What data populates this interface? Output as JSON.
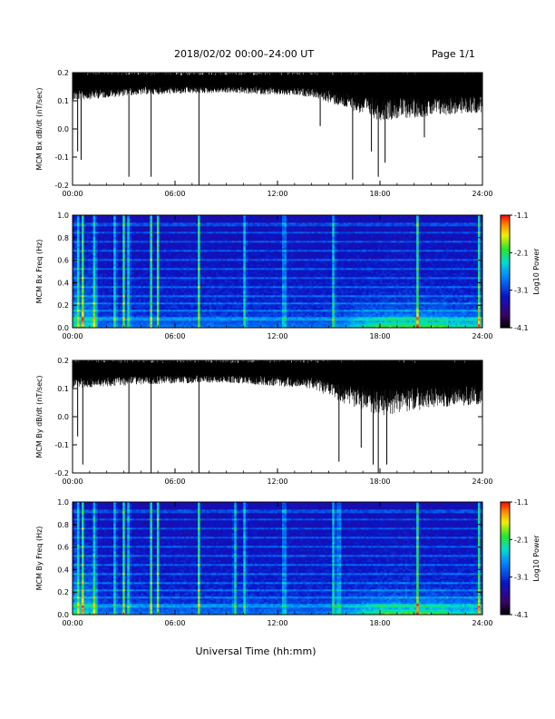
{
  "header": {
    "title": "2018/02/02  00:00–24:00 UT",
    "page": "Page 1/1"
  },
  "xaxis_title": "Universal Time (hh:mm)",
  "colors": {
    "trace": "#000000",
    "frame": "#000000",
    "background": "#ffffff"
  },
  "chart_data": [
    {
      "type": "line",
      "ylabel": "MCM Bx dB/dt (nT/sec)",
      "xlim": [
        0,
        24
      ],
      "ylim": [
        -0.2,
        0.2
      ],
      "xticks": [
        "00:00",
        "06:00",
        "12:00",
        "18:00",
        "24:00"
      ],
      "yticks": [
        "-0.2",
        "-0.1",
        "0.0",
        "0.1",
        "0.2"
      ],
      "baseline": 0.17,
      "noise_profile": [
        [
          0,
          0.05
        ],
        [
          4,
          0.035
        ],
        [
          9,
          0.03
        ],
        [
          14,
          0.04
        ],
        [
          16,
          0.07
        ],
        [
          18,
          0.1
        ],
        [
          21,
          0.09
        ],
        [
          24,
          0.08
        ]
      ],
      "spikes": [
        [
          0.3,
          -0.08
        ],
        [
          0.5,
          -0.11
        ],
        [
          3.3,
          -0.17
        ],
        [
          4.6,
          -0.17
        ],
        [
          7.4,
          -0.2
        ],
        [
          14.5,
          0.01
        ],
        [
          16.4,
          -0.18
        ],
        [
          17.5,
          -0.08
        ],
        [
          17.9,
          -0.17
        ],
        [
          18.3,
          -0.12
        ],
        [
          20.6,
          -0.03
        ]
      ]
    },
    {
      "type": "heatmap",
      "ylabel": "MCM Bx Freq (Hz)",
      "xlim": [
        0,
        24
      ],
      "ylim": [
        0,
        1.0
      ],
      "xticks": [
        "00:00",
        "06:00",
        "12:00",
        "18:00",
        "24:00"
      ],
      "yticks": [
        "0.0",
        "0.2",
        "0.4",
        "0.6",
        "0.8",
        "1.0"
      ],
      "colorbar": {
        "label": "Log10 Power",
        "ticks": [
          "-1.1",
          "-2.1",
          "-3.1",
          "-4.1"
        ],
        "range": [
          -4.1,
          -1.1
        ]
      },
      "broadband_hours": [
        0.3,
        0.6,
        1.3,
        2.5,
        3.0,
        3.3,
        4.6,
        5.0,
        7.4,
        10.1,
        12.4,
        15.3,
        20.2,
        23.8
      ],
      "harmonic_lines_hz": [
        0.08,
        0.16,
        0.22,
        0.28,
        0.36,
        0.44,
        0.52,
        0.6,
        0.68,
        0.76,
        0.84,
        0.92
      ]
    },
    {
      "type": "line",
      "ylabel": "MCM By dB/dt (nT/sec)",
      "xlim": [
        0,
        24
      ],
      "ylim": [
        -0.2,
        0.2
      ],
      "xticks": [
        "00:00",
        "06:00",
        "12:00",
        "18:00",
        "24:00"
      ],
      "yticks": [
        "-0.2",
        "-0.1",
        "0.0",
        "0.1",
        "0.2"
      ],
      "baseline": 0.17,
      "noise_profile": [
        [
          0,
          0.05
        ],
        [
          4,
          0.04
        ],
        [
          9,
          0.035
        ],
        [
          14,
          0.05
        ],
        [
          16,
          0.09
        ],
        [
          18,
          0.12
        ],
        [
          21,
          0.1
        ],
        [
          24,
          0.09
        ]
      ],
      "spikes": [
        [
          0.3,
          -0.07
        ],
        [
          0.6,
          -0.17
        ],
        [
          3.3,
          -0.2
        ],
        [
          4.6,
          -0.2
        ],
        [
          7.4,
          -0.2
        ],
        [
          15.6,
          -0.16
        ],
        [
          16.9,
          -0.11
        ],
        [
          17.6,
          -0.17
        ],
        [
          17.9,
          -0.2
        ],
        [
          18.4,
          -0.17
        ]
      ]
    },
    {
      "type": "heatmap",
      "ylabel": "MCM By Freq (Hz)",
      "xlim": [
        0,
        24
      ],
      "ylim": [
        0,
        1.0
      ],
      "xticks": [
        "00:00",
        "06:00",
        "12:00",
        "18:00",
        "24:00"
      ],
      "yticks": [
        "0.0",
        "0.2",
        "0.4",
        "0.6",
        "0.8",
        "1.0"
      ],
      "colorbar": {
        "label": "Log10 Power",
        "ticks": [
          "-1.1",
          "-2.1",
          "-3.1",
          "-4.1"
        ],
        "range": [
          -4.1,
          -1.1
        ]
      },
      "broadband_hours": [
        0.3,
        0.6,
        1.3,
        2.5,
        3.0,
        3.3,
        4.6,
        5.0,
        7.4,
        9.5,
        10.1,
        12.4,
        15.3,
        15.6,
        20.2,
        23.8
      ],
      "harmonic_lines_hz": [
        0.08,
        0.16,
        0.22,
        0.28,
        0.36,
        0.44,
        0.52,
        0.6,
        0.68,
        0.76,
        0.84,
        0.92
      ]
    }
  ]
}
